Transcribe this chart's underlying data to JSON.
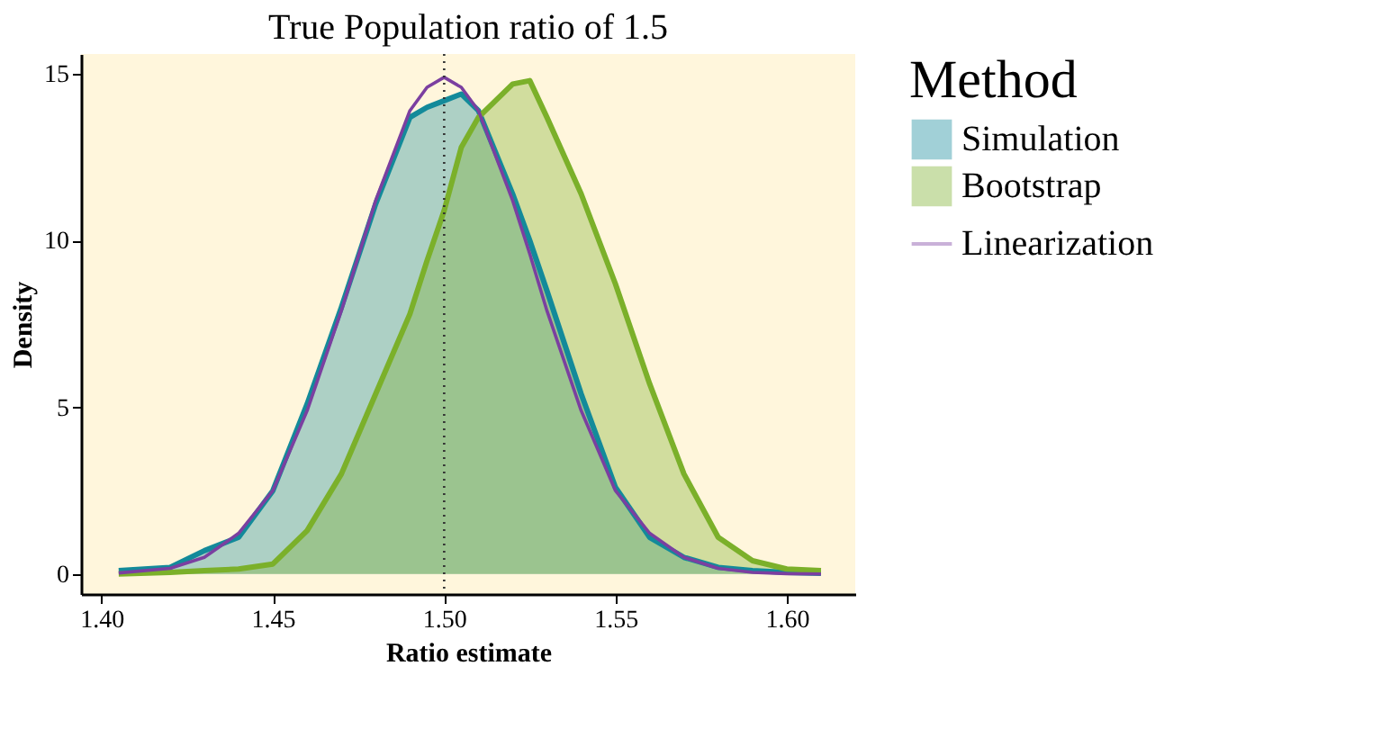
{
  "chart_data": {
    "type": "area",
    "title": "True Population ratio of 1.5",
    "xlabel": "Ratio estimate",
    "ylabel": "Density",
    "legend_title": "Method",
    "x": [
      1.405,
      1.42,
      1.43,
      1.44,
      1.45,
      1.46,
      1.47,
      1.48,
      1.49,
      1.495,
      1.5,
      1.505,
      1.51,
      1.52,
      1.525,
      1.53,
      1.54,
      1.55,
      1.56,
      1.57,
      1.58,
      1.59,
      1.6,
      1.61
    ],
    "series": [
      {
        "name": "Simulation",
        "type": "area",
        "color": "#138a9a",
        "values": [
          0.1,
          0.2,
          0.7,
          1.1,
          2.5,
          5.1,
          8.0,
          11.1,
          13.7,
          14.0,
          14.2,
          14.4,
          13.9,
          11.4,
          10.0,
          8.5,
          5.4,
          2.6,
          1.1,
          0.5,
          0.2,
          0.1,
          0.05,
          0.02
        ]
      },
      {
        "name": "Bootstrap",
        "type": "area",
        "color": "#7bb02a",
        "values": [
          0.0,
          0.05,
          0.1,
          0.15,
          0.3,
          1.3,
          3.0,
          5.4,
          7.8,
          9.4,
          10.9,
          12.8,
          13.7,
          14.7,
          14.8,
          13.7,
          11.4,
          8.7,
          5.7,
          3.0,
          1.1,
          0.4,
          0.15,
          0.1
        ]
      },
      {
        "name": "Linearization",
        "type": "line",
        "color": "#7b3fa0",
        "values": [
          0.03,
          0.17,
          0.5,
          1.22,
          2.5,
          4.9,
          7.9,
          11.2,
          13.9,
          14.6,
          14.9,
          14.6,
          13.9,
          11.2,
          9.6,
          7.9,
          4.9,
          2.5,
          1.22,
          0.5,
          0.17,
          0.05,
          0.01,
          0.0
        ]
      }
    ],
    "xlim": [
      1.394,
      1.62
    ],
    "xticks": [
      {
        "value": 1.4,
        "label": "1.40"
      },
      {
        "value": 1.45,
        "label": "1.45"
      },
      {
        "value": 1.5,
        "label": "1.50"
      },
      {
        "value": 1.55,
        "label": "1.55"
      },
      {
        "value": 1.6,
        "label": "1.60"
      }
    ],
    "ylim": [
      -0.6,
      15.6
    ],
    "yticks": [
      0,
      5,
      10,
      15
    ],
    "ref_lines": [
      {
        "axis": "x",
        "value": 1.5,
        "label": null,
        "color": "#333333",
        "line_style": "dotted"
      }
    ],
    "grid": false,
    "legend": "right",
    "line_style": "solid"
  }
}
